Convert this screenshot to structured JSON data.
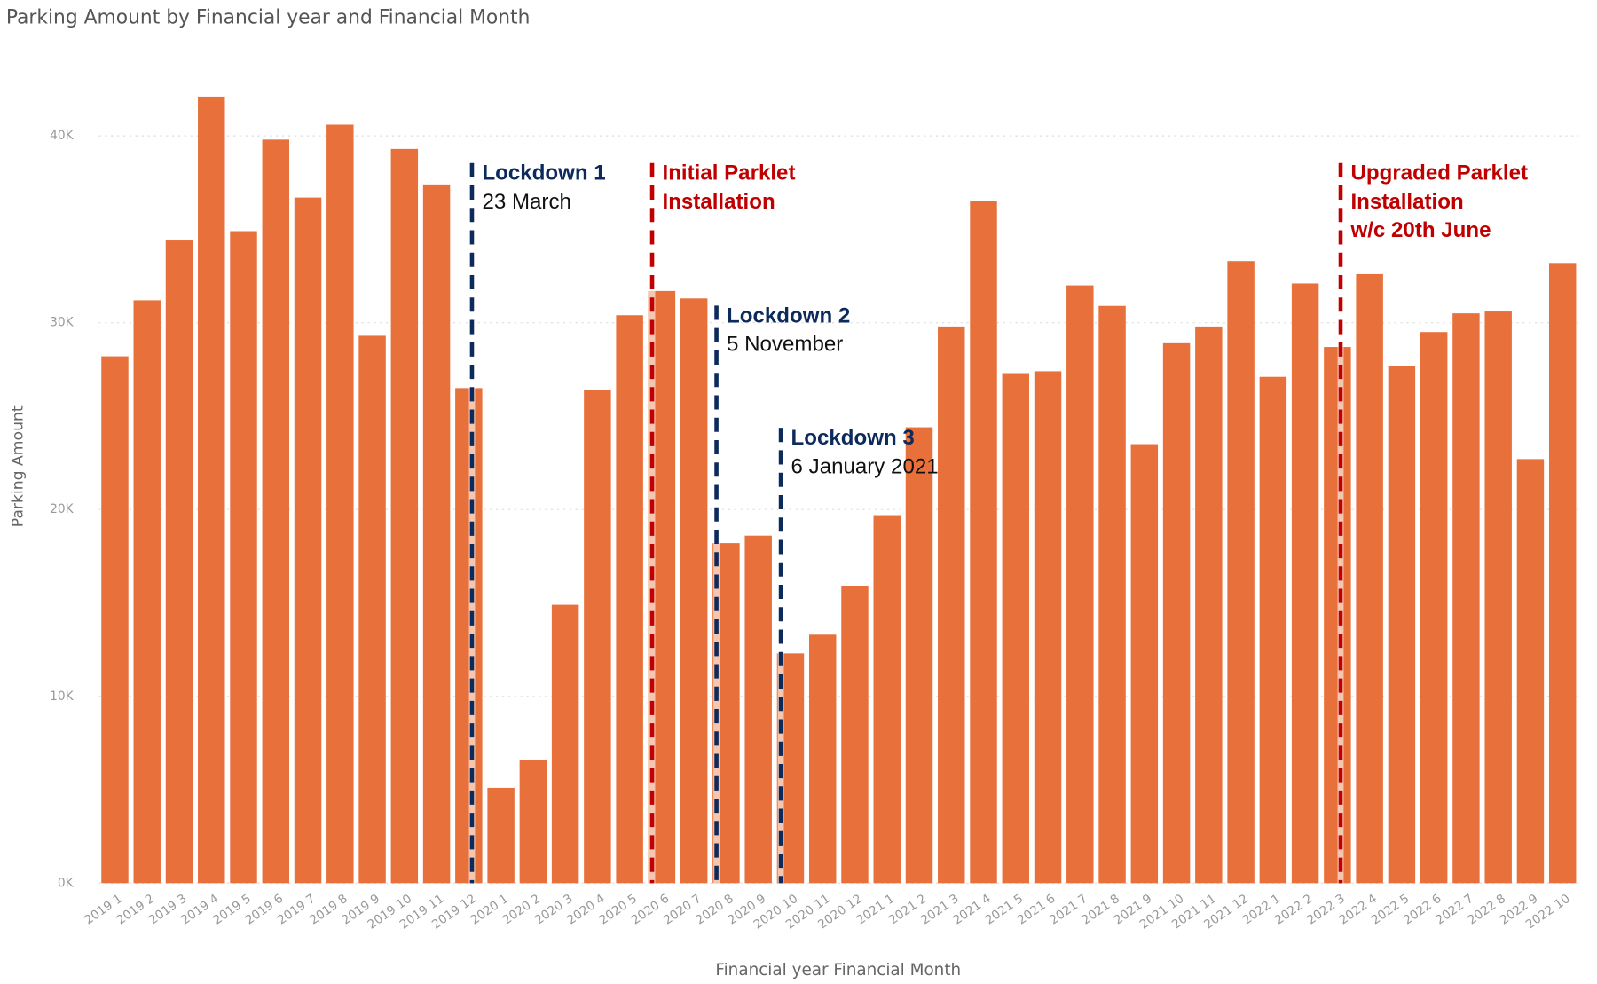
{
  "chart_data": {
    "type": "bar",
    "title": "Parking Amount by Financial year and Financial Month",
    "x_label": "Financial year Financial Month",
    "y_label": "Parking Amount",
    "color": "#e8703a",
    "categories": [
      "2019 1",
      "2019 2",
      "2019 3",
      "2019 4",
      "2019 5",
      "2019 6",
      "2019 7",
      "2019 8",
      "2019 9",
      "2019 10",
      "2019 11",
      "2019 12",
      "2020 1",
      "2020 2",
      "2020 3",
      "2020 4",
      "2020 5",
      "2020 6",
      "2020 7",
      "2020 8",
      "2020 9",
      "2020 10",
      "2020 11",
      "2020 12",
      "2021 1",
      "2021 2",
      "2021 3",
      "2021 4",
      "2021 5",
      "2021 6",
      "2021 7",
      "2021 8",
      "2021 9",
      "2021 10",
      "2021 11",
      "2021 12",
      "2022 1",
      "2022 2",
      "2022 3",
      "2022 4",
      "2022 5",
      "2022 6",
      "2022 7",
      "2022 8",
      "2022 9",
      "2022 10"
    ],
    "values": [
      28200,
      31200,
      34400,
      42100,
      34900,
      39800,
      36700,
      40600,
      29300,
      39300,
      37400,
      26500,
      5100,
      6600,
      14900,
      26400,
      30400,
      31700,
      31300,
      18200,
      18600,
      12300,
      13300,
      15900,
      19700,
      24400,
      29800,
      36500,
      27300,
      27400,
      32000,
      30900,
      23500,
      28900,
      29800,
      33300,
      27100,
      32100,
      28700,
      32600,
      27700,
      29500,
      30500,
      30600,
      22700,
      33200
    ],
    "ylim": [
      0,
      44000
    ],
    "yticks": [
      {
        "value": 0,
        "label": "0K"
      },
      {
        "value": 10000,
        "label": "10K"
      },
      {
        "value": 20000,
        "label": "20K"
      },
      {
        "value": 30000,
        "label": "30K"
      },
      {
        "value": 40000,
        "label": "40K"
      }
    ],
    "grid": true,
    "annotations": [
      {
        "lines": [
          "Lockdown 1",
          "23 March"
        ],
        "color": "#0d2a5c"
      },
      {
        "lines": [
          "Initial Parklet",
          "Installation"
        ],
        "color": "#c00000"
      },
      {
        "lines": [
          "Lockdown 2",
          "5 November"
        ],
        "color": "#0d2a5c"
      },
      {
        "lines": [
          "Lockdown 3",
          "6 January 2021"
        ],
        "color": "#0d2a5c"
      },
      {
        "lines": [
          "Upgraded Parklet",
          "Installation",
          "w/c 20th June"
        ],
        "color": "#c00000"
      }
    ]
  }
}
